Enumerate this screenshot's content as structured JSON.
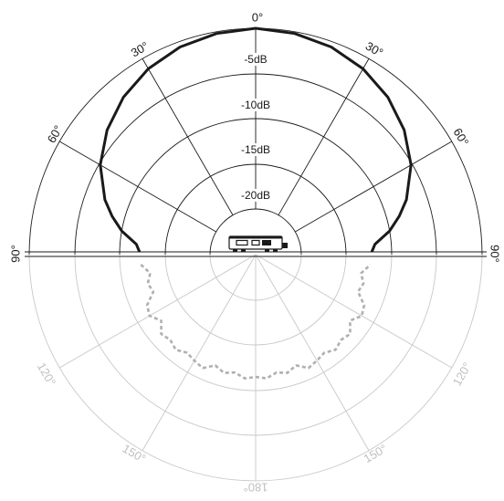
{
  "chart_data": {
    "type": "polar",
    "radial_axis": {
      "unit": "dB",
      "ticks": [
        0,
        -5,
        -10,
        -15,
        -20,
        -25
      ],
      "tick_labels": [
        "-5dB",
        "-10dB",
        "-15dB",
        "-20dB"
      ],
      "range": [
        -25,
        0
      ]
    },
    "angular_axis": {
      "unit": "degrees",
      "labels": [
        "0°",
        "30°",
        "60°",
        "90°",
        "120°",
        "150°",
        "180°"
      ],
      "label_angles": [
        0,
        30,
        60,
        90,
        120,
        150,
        180
      ],
      "spoke_step_deg": 30,
      "lower_half_faded": true
    },
    "series": [
      {
        "style": "solid-dark",
        "angles": [
          0,
          10,
          20,
          30,
          40,
          50,
          60,
          70,
          75,
          80,
          85
        ],
        "values": [
          0.0,
          -0.2,
          -0.6,
          -1.3,
          -2.3,
          -3.6,
          -5.2,
          -7.3,
          -8.6,
          -10.0,
          -11.8
        ]
      },
      {
        "style": "dashed-gray",
        "angles": [
          95,
          100,
          105,
          110,
          115,
          120,
          125,
          130,
          135,
          140,
          145,
          150,
          155,
          160,
          165,
          170,
          175,
          180
        ],
        "values": [
          -12.3,
          -13.2,
          -12.7,
          -13.0,
          -11.8,
          -11.5,
          -12.3,
          -11.4,
          -11.7,
          -11.3,
          -11.8,
          -11.5,
          -11.2,
          -12.0,
          -11.5,
          -11.8,
          -11.3,
          -11.5
        ]
      }
    ]
  }
}
